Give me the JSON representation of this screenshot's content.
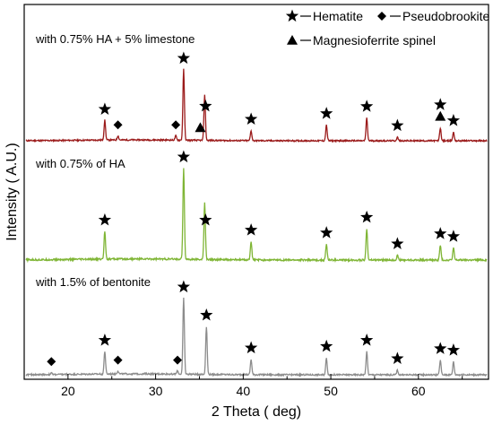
{
  "chart_data": {
    "type": "line",
    "xlabel": "2 Theta ( deg)",
    "ylabel": "Intensity ( A.U.)",
    "xlim": [
      15,
      68
    ],
    "xticks": [
      20,
      30,
      40,
      50,
      60
    ],
    "grid": false,
    "legend": {
      "placement": "top-right",
      "entries": [
        {
          "name": "Hematite",
          "marker": "star"
        },
        {
          "name": "Pseudobrookite",
          "marker": "diamond"
        },
        {
          "name": "Magnesioferrite spinel",
          "marker": "triangle"
        }
      ]
    },
    "series": [
      {
        "name": "with 0.75% HA + 5% limestone",
        "color": "#9b1b1b",
        "peaks": [
          [
            24.2,
            0.28
          ],
          [
            25.7,
            0.06
          ],
          [
            32.3,
            0.06
          ],
          [
            33.2,
            1.0
          ],
          [
            35.6,
            0.65
          ],
          [
            40.9,
            0.14
          ],
          [
            49.5,
            0.22
          ],
          [
            54.1,
            0.32
          ],
          [
            57.6,
            0.05
          ],
          [
            62.5,
            0.18
          ],
          [
            64.0,
            0.12
          ]
        ],
        "markers": [
          {
            "x": 24.2,
            "marker": "star"
          },
          {
            "x": 25.7,
            "marker": "diamond"
          },
          {
            "x": 32.3,
            "marker": "diamond"
          },
          {
            "x": 33.2,
            "marker": "star"
          },
          {
            "x": 35.1,
            "marker": "triangle"
          },
          {
            "x": 35.7,
            "marker": "star"
          },
          {
            "x": 40.9,
            "marker": "star"
          },
          {
            "x": 49.5,
            "marker": "star"
          },
          {
            "x": 54.1,
            "marker": "star"
          },
          {
            "x": 57.6,
            "marker": "star"
          },
          {
            "x": 62.5,
            "marker": "triangle"
          },
          {
            "x": 62.5,
            "marker": "star"
          },
          {
            "x": 64.0,
            "marker": "star"
          }
        ]
      },
      {
        "name": "with 0.75% of HA",
        "color": "#7fb535",
        "peaks": [
          [
            24.2,
            0.31
          ],
          [
            33.2,
            1.0
          ],
          [
            35.6,
            0.62
          ],
          [
            40.9,
            0.2
          ],
          [
            49.5,
            0.17
          ],
          [
            54.1,
            0.34
          ],
          [
            57.6,
            0.05
          ],
          [
            62.5,
            0.16
          ],
          [
            64.0,
            0.13
          ]
        ],
        "markers": [
          {
            "x": 24.2,
            "marker": "star"
          },
          {
            "x": 33.2,
            "marker": "star"
          },
          {
            "x": 35.7,
            "marker": "star"
          },
          {
            "x": 40.9,
            "marker": "star"
          },
          {
            "x": 49.5,
            "marker": "star"
          },
          {
            "x": 54.1,
            "marker": "star"
          },
          {
            "x": 57.6,
            "marker": "star"
          },
          {
            "x": 62.5,
            "marker": "star"
          },
          {
            "x": 64.0,
            "marker": "star"
          }
        ]
      },
      {
        "name": "with 1.5% of bentonite",
        "color": "#8c8c8c",
        "peaks": [
          [
            18.1,
            0.02
          ],
          [
            24.2,
            0.3
          ],
          [
            25.7,
            0.04
          ],
          [
            32.5,
            0.04
          ],
          [
            33.2,
            1.0
          ],
          [
            35.8,
            0.63
          ],
          [
            40.9,
            0.2
          ],
          [
            49.5,
            0.22
          ],
          [
            54.1,
            0.3
          ],
          [
            57.6,
            0.06
          ],
          [
            62.5,
            0.19
          ],
          [
            64.0,
            0.17
          ]
        ],
        "markers": [
          {
            "x": 18.1,
            "marker": "diamond"
          },
          {
            "x": 24.2,
            "marker": "star"
          },
          {
            "x": 25.7,
            "marker": "diamond"
          },
          {
            "x": 32.5,
            "marker": "diamond"
          },
          {
            "x": 33.2,
            "marker": "star"
          },
          {
            "x": 35.8,
            "marker": "star"
          },
          {
            "x": 40.9,
            "marker": "star"
          },
          {
            "x": 49.5,
            "marker": "star"
          },
          {
            "x": 54.1,
            "marker": "star"
          },
          {
            "x": 57.6,
            "marker": "star"
          },
          {
            "x": 62.5,
            "marker": "star"
          },
          {
            "x": 64.0,
            "marker": "star"
          }
        ]
      }
    ]
  }
}
